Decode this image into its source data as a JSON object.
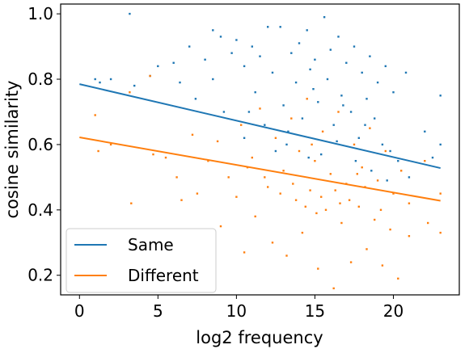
{
  "chart_data": {
    "type": "scatter",
    "xlabel": "log2 frequency",
    "ylabel": "cosine similarity",
    "xlim": [
      -1.2,
      24.2
    ],
    "ylim": [
      0.14,
      1.03
    ],
    "xticks": [
      0,
      5,
      10,
      15,
      20
    ],
    "xtick_labels": [
      "0",
      "5",
      "10",
      "15",
      "20"
    ],
    "yticks": [
      0.2,
      0.4,
      0.6,
      0.8,
      1.0
    ],
    "ytick_labels": [
      "0.2",
      "0.4",
      "0.6",
      "0.8",
      "1.0"
    ],
    "grid": false,
    "legend_position": "bottom-left",
    "series": [
      {
        "name": "Same",
        "color": "#1f77b4",
        "trend": {
          "x": [
            0,
            23
          ],
          "y": [
            0.785,
            0.528
          ]
        },
        "points": [
          [
            3.2,
            1.0
          ],
          [
            1.0,
            0.8
          ],
          [
            1.3,
            0.79
          ],
          [
            2.0,
            0.8
          ],
          [
            3.5,
            0.78
          ],
          [
            4.5,
            0.81
          ],
          [
            5.0,
            0.84
          ],
          [
            6.0,
            0.85
          ],
          [
            6.4,
            0.79
          ],
          [
            7.0,
            0.9
          ],
          [
            7.4,
            0.74
          ],
          [
            8.0,
            0.86
          ],
          [
            8.5,
            0.95
          ],
          [
            8.5,
            0.8
          ],
          [
            9.0,
            0.93
          ],
          [
            9.2,
            0.7
          ],
          [
            10.0,
            0.92
          ],
          [
            10.5,
            0.84
          ],
          [
            11.0,
            0.9
          ],
          [
            11.2,
            0.76
          ],
          [
            11.5,
            0.87
          ],
          [
            12.0,
            0.96
          ],
          [
            12.3,
            0.82
          ],
          [
            12.8,
            0.96
          ],
          [
            13.0,
            0.72
          ],
          [
            13.5,
            0.88
          ],
          [
            13.8,
            0.79
          ],
          [
            14.0,
            0.91
          ],
          [
            14.2,
            0.68
          ],
          [
            14.5,
            0.95
          ],
          [
            14.7,
            0.83
          ],
          [
            15.0,
            0.86
          ],
          [
            15.2,
            0.73
          ],
          [
            15.6,
            0.99
          ],
          [
            15.8,
            0.8
          ],
          [
            16.0,
            0.89
          ],
          [
            16.2,
            0.66
          ],
          [
            16.5,
            0.93
          ],
          [
            16.7,
            0.75
          ],
          [
            17.0,
            0.85
          ],
          [
            17.3,
            0.7
          ],
          [
            17.5,
            0.9
          ],
          [
            17.8,
            0.62
          ],
          [
            18.0,
            0.82
          ],
          [
            18.3,
            0.74
          ],
          [
            18.5,
            0.87
          ],
          [
            18.8,
            0.68
          ],
          [
            19.0,
            0.79
          ],
          [
            19.3,
            0.6
          ],
          [
            19.5,
            0.84
          ],
          [
            19.8,
            0.58
          ],
          [
            20.0,
            0.76
          ],
          [
            20.3,
            0.55
          ],
          [
            20.8,
            0.82
          ],
          [
            21.0,
            0.5
          ],
          [
            22.0,
            0.64
          ],
          [
            22.5,
            0.56
          ],
          [
            23.0,
            0.6
          ],
          [
            23.0,
            0.75
          ],
          [
            10.5,
            0.62
          ],
          [
            11.8,
            0.66
          ],
          [
            12.5,
            0.58
          ],
          [
            13.2,
            0.6
          ],
          [
            14.6,
            0.56
          ],
          [
            15.4,
            0.57
          ],
          [
            16.4,
            0.61
          ],
          [
            17.6,
            0.55
          ],
          [
            18.6,
            0.52
          ],
          [
            19.6,
            0.49
          ],
          [
            9.7,
            0.88
          ],
          [
            10.8,
            0.7
          ],
          [
            13.3,
            0.64
          ],
          [
            14.9,
            0.77
          ],
          [
            16.8,
            0.72
          ],
          [
            18.2,
            0.66
          ]
        ]
      },
      {
        "name": "Different",
        "color": "#ff7f0e",
        "trend": {
          "x": [
            0,
            23
          ],
          "y": [
            0.622,
            0.428
          ]
        },
        "points": [
          [
            1.0,
            0.69
          ],
          [
            1.2,
            0.58
          ],
          [
            2.0,
            0.6
          ],
          [
            3.2,
            0.76
          ],
          [
            3.3,
            0.42
          ],
          [
            4.5,
            0.81
          ],
          [
            4.7,
            0.57
          ],
          [
            5.5,
            0.56
          ],
          [
            6.2,
            0.5
          ],
          [
            6.5,
            0.43
          ],
          [
            7.2,
            0.63
          ],
          [
            7.5,
            0.45
          ],
          [
            8.2,
            0.55
          ],
          [
            8.8,
            0.61
          ],
          [
            9.5,
            0.5
          ],
          [
            10.0,
            0.44
          ],
          [
            10.3,
            0.66
          ],
          [
            10.5,
            0.27
          ],
          [
            11.0,
            0.56
          ],
          [
            11.2,
            0.38
          ],
          [
            11.5,
            0.71
          ],
          [
            12.0,
            0.47
          ],
          [
            12.3,
            0.3
          ],
          [
            12.5,
            0.62
          ],
          [
            13.0,
            0.52
          ],
          [
            13.2,
            0.26
          ],
          [
            13.5,
            0.68
          ],
          [
            13.8,
            0.43
          ],
          [
            14.0,
            0.58
          ],
          [
            14.2,
            0.33
          ],
          [
            14.5,
            0.74
          ],
          [
            14.7,
            0.46
          ],
          [
            15.0,
            0.55
          ],
          [
            15.2,
            0.22
          ],
          [
            15.5,
            0.64
          ],
          [
            15.7,
            0.4
          ],
          [
            16.0,
            0.51
          ],
          [
            16.2,
            0.16
          ],
          [
            16.5,
            0.7
          ],
          [
            16.7,
            0.36
          ],
          [
            17.0,
            0.48
          ],
          [
            17.3,
            0.24
          ],
          [
            17.5,
            0.6
          ],
          [
            17.8,
            0.41
          ],
          [
            18.0,
            0.53
          ],
          [
            18.3,
            0.28
          ],
          [
            18.5,
            0.65
          ],
          [
            18.8,
            0.37
          ],
          [
            19.0,
            0.49
          ],
          [
            19.3,
            0.23
          ],
          [
            19.5,
            0.58
          ],
          [
            19.8,
            0.34
          ],
          [
            20.0,
            0.45
          ],
          [
            20.3,
            0.19
          ],
          [
            20.5,
            0.52
          ],
          [
            21.0,
            0.32
          ],
          [
            21.0,
            0.42
          ],
          [
            22.0,
            0.55
          ],
          [
            22.2,
            0.36
          ],
          [
            23.0,
            0.33
          ],
          [
            23.0,
            0.45
          ],
          [
            11.8,
            0.5
          ],
          [
            12.8,
            0.45
          ],
          [
            13.6,
            0.48
          ],
          [
            14.4,
            0.41
          ],
          [
            15.4,
            0.44
          ],
          [
            16.3,
            0.46
          ],
          [
            17.2,
            0.43
          ],
          [
            18.2,
            0.47
          ],
          [
            19.2,
            0.4
          ],
          [
            15.1,
            0.39
          ],
          [
            16.6,
            0.42
          ],
          [
            17.7,
            0.51
          ],
          [
            14.8,
            0.6
          ],
          [
            9.0,
            0.35
          ],
          [
            10.7,
            0.53
          ]
        ]
      }
    ]
  }
}
